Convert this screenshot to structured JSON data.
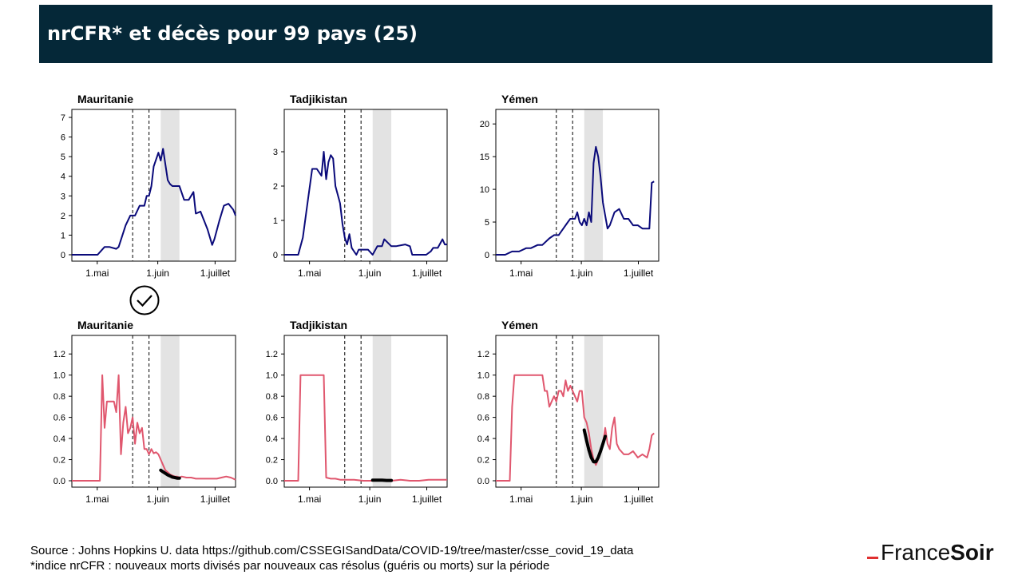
{
  "header": {
    "title": "nrCFR* et décès pour 99 pays (25)"
  },
  "footer": {
    "source_line": "Source : Johns Hopkins U. data https://github.com/CSSEGISandData/COVID-19/tree/master/csse_covid_19_data",
    "note_line": "*indice nrCFR : nouveaux morts divisés par nouveaux cas résolus (guéris ou morts) sur la période"
  },
  "logo": {
    "part1": "France",
    "part2": "Soir",
    "accent_color": "#e03030"
  },
  "colors": {
    "header_bg": "#052838",
    "deaths_line": "#0a0a7a",
    "nrcfr_line": "#e0576e",
    "fit_curve": "#000000",
    "shade": "#e3e3e3"
  },
  "chart_data": [
    {
      "type": "line",
      "panel": "top",
      "title": "Mauritanie",
      "ylim": [
        0,
        7
      ],
      "yticks": [
        "0",
        "1",
        "2",
        "3",
        "4",
        "5",
        "6",
        "7"
      ],
      "xticks": [
        "1.mai",
        "1.juin",
        "1.juillet"
      ],
      "x_unit": "day index from 2020-04-21",
      "xlim": [
        0,
        70
      ],
      "dashed_x": [
        26,
        33
      ],
      "shade_x": [
        38,
        46
      ],
      "series": [
        {
          "x": [
            0,
            11,
            14,
            16,
            19,
            20,
            23,
            25,
            27,
            29,
            31,
            32,
            33,
            34,
            35,
            37,
            38,
            39,
            41,
            42,
            43,
            46,
            48,
            50,
            52,
            53,
            55,
            58,
            60,
            61,
            63,
            65,
            67,
            69,
            70
          ],
          "y": [
            0,
            0,
            0.4,
            0.4,
            0.3,
            0.4,
            1.5,
            2,
            2,
            2.5,
            2.5,
            3,
            3,
            3.5,
            4.5,
            5.2,
            4.8,
            5.4,
            3.8,
            3.6,
            3.5,
            3.5,
            2.8,
            2.8,
            3.2,
            2.1,
            2.2,
            1.3,
            0.5,
            0.8,
            1.7,
            2.5,
            2.6,
            2.3,
            2
          ]
        }
      ],
      "markers": [
        "check"
      ]
    },
    {
      "type": "line",
      "panel": "top",
      "title": "Tadjikistan",
      "ylim": [
        0,
        4
      ],
      "yticks": [
        "0",
        "1",
        "2",
        "3"
      ],
      "xticks": [
        "1.mai",
        "1.juin",
        "1.juillet"
      ],
      "x_unit": "day index from 2020-04-21",
      "xlim": [
        0,
        70
      ],
      "dashed_x": [
        26,
        33
      ],
      "shade_x": [
        38,
        46
      ],
      "series": [
        {
          "x": [
            0,
            6,
            8,
            10,
            12,
            14,
            16,
            17,
            18,
            19,
            20,
            21,
            22,
            24,
            25,
            26,
            27,
            28,
            29,
            31,
            32,
            34,
            36,
            38,
            40,
            42,
            43,
            46,
            48,
            52,
            54,
            55,
            57,
            59,
            61,
            63,
            64,
            66,
            68,
            69,
            70
          ],
          "y": [
            0,
            0,
            0.5,
            1.5,
            2.5,
            2.5,
            2.3,
            3,
            2.2,
            2.7,
            2.9,
            2.8,
            2,
            1.5,
            0.9,
            0.5,
            0.3,
            0.6,
            0.2,
            0,
            0.15,
            0.15,
            0.15,
            0,
            0.25,
            0.25,
            0.45,
            0.25,
            0.25,
            0.3,
            0.25,
            0,
            0,
            0,
            0,
            0.1,
            0.2,
            0.2,
            0.45,
            0.3,
            0.3
          ]
        }
      ]
    },
    {
      "type": "line",
      "panel": "top",
      "title": "Yémen",
      "ylim": [
        0,
        21
      ],
      "yticks": [
        "0",
        "5",
        "10",
        "15",
        "20"
      ],
      "xticks": [
        "1.mai",
        "1.juin",
        "1.juillet"
      ],
      "x_unit": "day index from 2020-04-21",
      "xlim": [
        0,
        70
      ],
      "dashed_x": [
        26,
        33
      ],
      "shade_x": [
        38,
        46
      ],
      "series": [
        {
          "x": [
            0,
            4,
            7,
            10,
            13,
            15,
            18,
            20,
            23,
            25,
            27,
            28,
            31,
            32,
            34,
            35,
            36,
            37,
            38,
            39,
            40,
            41,
            42,
            43,
            44,
            45,
            46,
            47,
            48,
            49,
            50,
            51,
            53,
            55,
            57,
            59,
            61,
            63,
            65,
            66,
            67,
            68
          ],
          "y": [
            0,
            0,
            0.5,
            0.5,
            1,
            1,
            1.5,
            1.5,
            2.5,
            3,
            3,
            3.5,
            5,
            5.5,
            5.5,
            6.5,
            5,
            4.5,
            5.5,
            4.5,
            6.5,
            5,
            14,
            16.5,
            15,
            12,
            8,
            6,
            4,
            4.5,
            5.5,
            6.5,
            7,
            5.5,
            5.5,
            4.5,
            4.5,
            4,
            4,
            4,
            11,
            11.2
          ]
        }
      ]
    },
    {
      "type": "line",
      "panel": "bottom",
      "title": "Mauritanie",
      "ylim": [
        0,
        1.3
      ],
      "yticks": [
        "0.0",
        "0.2",
        "0.4",
        "0.6",
        "0.8",
        "1.0",
        "1.2"
      ],
      "xticks": [
        "1.mai",
        "1.juin",
        "1.juillet"
      ],
      "x_unit": "day index from 2020-04-21",
      "xlim": [
        0,
        70
      ],
      "dashed_x": [
        26,
        33
      ],
      "shade_x": [
        38,
        46
      ],
      "series": [
        {
          "x": [
            0,
            4,
            8,
            12,
            13,
            14,
            15,
            16,
            17,
            18,
            19,
            20,
            21,
            22,
            23,
            24,
            25,
            26,
            27,
            28,
            29,
            30,
            31,
            32,
            33,
            34,
            35,
            36,
            37,
            38,
            39,
            40,
            41,
            42,
            43,
            44,
            45,
            46,
            47,
            49,
            51,
            53,
            55,
            57,
            60,
            62,
            64,
            66,
            68,
            70
          ],
          "y": [
            0,
            0,
            0,
            0,
            1.0,
            0.5,
            0.75,
            0.75,
            0.75,
            0.75,
            0.65,
            1.0,
            0.25,
            0.55,
            0.7,
            0.45,
            0.5,
            0.6,
            0.35,
            0.55,
            0.45,
            0.5,
            0.3,
            0.3,
            0.25,
            0.3,
            0.26,
            0.27,
            0.25,
            0.2,
            0.15,
            0.1,
            0.08,
            0.06,
            0.05,
            0.04,
            0.04,
            0.03,
            0.04,
            0.03,
            0.03,
            0.02,
            0.02,
            0.02,
            0.02,
            0.02,
            0.03,
            0.04,
            0.03,
            0.01
          ]
        }
      ],
      "fit_curve": {
        "x": [
          38,
          39,
          40,
          41,
          42,
          43,
          44,
          45,
          46
        ],
        "y": [
          0.1,
          0.085,
          0.07,
          0.055,
          0.045,
          0.035,
          0.03,
          0.025,
          0.025
        ]
      }
    },
    {
      "type": "line",
      "panel": "bottom",
      "title": "Tadjikistan",
      "ylim": [
        0,
        1.3
      ],
      "yticks": [
        "0.0",
        "0.2",
        "0.4",
        "0.6",
        "0.8",
        "1.0",
        "1.2"
      ],
      "xticks": [
        "1.mai",
        "1.juin",
        "1.juillet"
      ],
      "x_unit": "day index from 2020-04-21",
      "xlim": [
        0,
        70
      ],
      "dashed_x": [
        26,
        33
      ],
      "shade_x": [
        38,
        46
      ],
      "series": [
        {
          "x": [
            0,
            5,
            6,
            7,
            15,
            16,
            17,
            18,
            20,
            22,
            24,
            26,
            30,
            34,
            38,
            42,
            46,
            50,
            54,
            58,
            62,
            66,
            70
          ],
          "y": [
            0,
            0,
            0,
            1.0,
            1.0,
            1.0,
            1.0,
            0.03,
            0.02,
            0.02,
            0.01,
            0.01,
            0.01,
            0,
            0,
            0,
            0,
            0.01,
            0,
            0,
            0.01,
            0.01,
            0.01
          ]
        }
      ],
      "fit_curve": {
        "x": [
          38,
          40,
          42,
          44,
          46
        ],
        "y": [
          0.005,
          0.005,
          0.005,
          0.003,
          0.003
        ]
      }
    },
    {
      "type": "line",
      "panel": "bottom",
      "title": "Yémen",
      "ylim": [
        0,
        1.3
      ],
      "yticks": [
        "0.0",
        "0.2",
        "0.4",
        "0.6",
        "0.8",
        "1.0",
        "1.2"
      ],
      "xticks": [
        "1.mai",
        "1.juin",
        "1.juillet"
      ],
      "x_unit": "day index from 2020-04-21",
      "xlim": [
        0,
        70
      ],
      "dashed_x": [
        26,
        33
      ],
      "shade_x": [
        38,
        46
      ],
      "series": [
        {
          "x": [
            0,
            5,
            6,
            7,
            8,
            9,
            10,
            15,
            18,
            19,
            20,
            21,
            22,
            23,
            24,
            25,
            26,
            27,
            28,
            29,
            30,
            31,
            32,
            33,
            34,
            35,
            36,
            37,
            38,
            39,
            40,
            41,
            42,
            43,
            44,
            45,
            46,
            47,
            48,
            49,
            50,
            51,
            52,
            53,
            55,
            57,
            59,
            61,
            63,
            65,
            66,
            67,
            68
          ],
          "y": [
            0,
            0,
            0,
            0.7,
            1.0,
            1.0,
            1.0,
            1.0,
            1.0,
            1.0,
            1.0,
            0.85,
            0.85,
            0.7,
            0.75,
            0.8,
            0.75,
            0.85,
            0.85,
            0.8,
            0.95,
            0.85,
            0.9,
            0.85,
            0.8,
            0.75,
            0.85,
            0.85,
            0.6,
            0.55,
            0.45,
            0.3,
            0.2,
            0.15,
            0.2,
            0.3,
            0.35,
            0.5,
            0.35,
            0.3,
            0.5,
            0.6,
            0.35,
            0.3,
            0.25,
            0.25,
            0.28,
            0.22,
            0.25,
            0.22,
            0.3,
            0.43,
            0.45
          ]
        }
      ],
      "fit_curve": {
        "x": [
          38,
          39,
          40,
          41,
          42,
          43,
          44,
          45,
          46,
          47
        ],
        "y": [
          0.48,
          0.38,
          0.29,
          0.22,
          0.18,
          0.18,
          0.22,
          0.28,
          0.35,
          0.42
        ]
      }
    }
  ]
}
